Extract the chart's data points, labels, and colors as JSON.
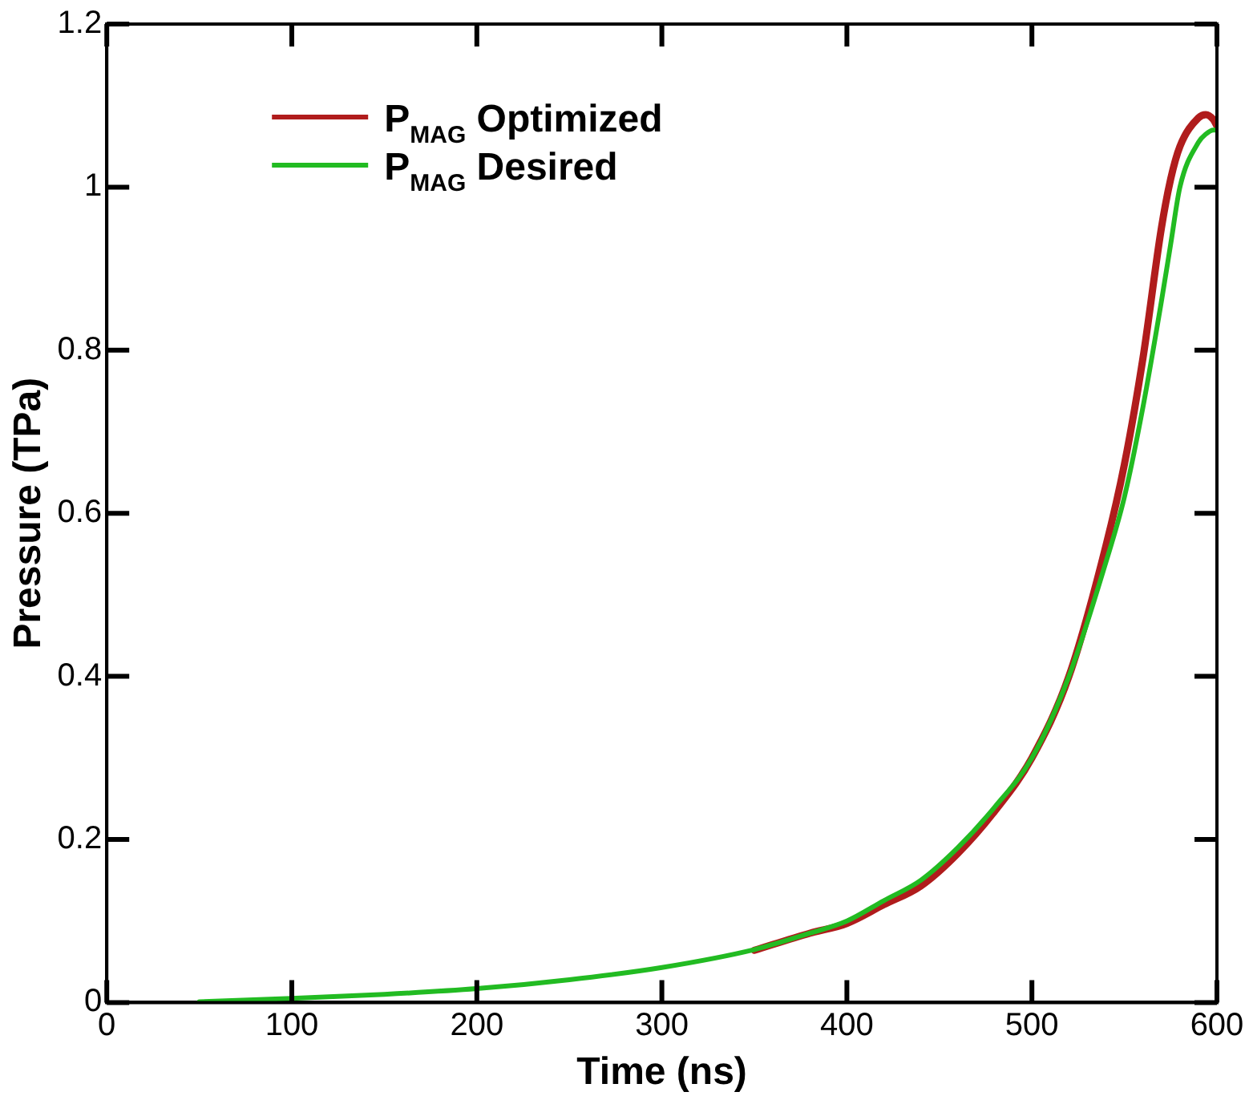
{
  "chart_data": {
    "type": "line",
    "xlabel": "Time (ns)",
    "ylabel": "Pressure (TPa)",
    "xlim": [
      0,
      600
    ],
    "xticks": [
      0,
      100,
      200,
      300,
      400,
      500,
      600
    ],
    "ylim": [
      0,
      1.2
    ],
    "yticks": [
      0,
      0.2,
      0.4,
      0.6,
      0.8,
      1,
      1.2
    ],
    "x": [
      50,
      100,
      150,
      200,
      250,
      300,
      350,
      380,
      400,
      420,
      440,
      460,
      480,
      500,
      520,
      540,
      550,
      560,
      570,
      575,
      580,
      590,
      594,
      598,
      600
    ],
    "legend": "top left",
    "grid": false,
    "marker": "none",
    "line_style": "solid",
    "series": [
      {
        "name": "P$_{MAG}$ Optimized",
        "color": "#b01c1c",
        "values": [
          null,
          null,
          null,
          null,
          null,
          null,
          0.064,
          0.085,
          0.097,
          0.12,
          0.143,
          0.183,
          0.235,
          0.3,
          0.4,
          0.56,
          0.66,
          0.79,
          0.95,
          1.01,
          1.05,
          1.085,
          1.089,
          1.083,
          1.075
        ]
      },
      {
        "name": "P$_{MAG}$ Desired",
        "color": "#22bb22",
        "values": [
          0.001,
          0.005,
          0.01,
          0.017,
          0.028,
          0.043,
          0.065,
          0.085,
          0.1,
          0.125,
          0.15,
          0.19,
          0.24,
          0.3,
          0.4,
          0.54,
          0.62,
          0.73,
          0.86,
          0.93,
          1.0,
          1.055,
          1.065,
          1.07,
          1.07
        ]
      }
    ]
  }
}
